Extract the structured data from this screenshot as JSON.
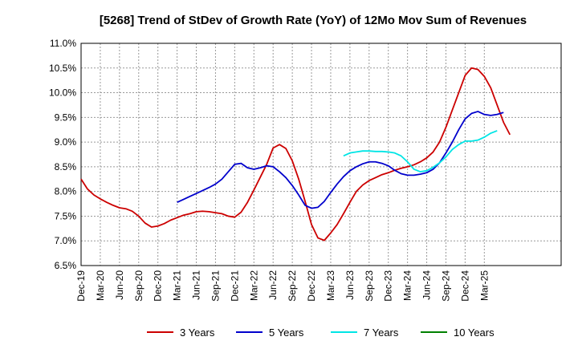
{
  "chart_data": {
    "type": "line",
    "title": "[5268]  Trend of StDev of Growth Rate (YoY) of 12Mo Mov Sum of Revenues",
    "xlabel": "",
    "ylabel": "",
    "ylim": [
      6.5,
      11.0
    ],
    "yticks": [
      "11.0%",
      "10.5%",
      "10.0%",
      "9.5%",
      "9.0%",
      "8.5%",
      "8.0%",
      "7.5%",
      "7.0%",
      "6.5%"
    ],
    "ytick_values": [
      11.0,
      10.5,
      10.0,
      9.5,
      9.0,
      8.5,
      8.0,
      7.5,
      7.0,
      6.5
    ],
    "xlim": [
      0,
      75
    ],
    "xticks": [
      "Dec-19",
      "Mar-20",
      "Jun-20",
      "Sep-20",
      "Dec-20",
      "Mar-21",
      "Jun-21",
      "Sep-21",
      "Dec-21",
      "Mar-22",
      "Jun-22",
      "Sep-22",
      "Dec-22",
      "Mar-23",
      "Jun-23",
      "Sep-23",
      "Dec-23",
      "Mar-24",
      "Jun-24",
      "Sep-24",
      "Dec-24",
      "Mar-25"
    ],
    "x_note": "x values are months since Dec-19",
    "series": [
      {
        "name": "3 Years",
        "color": "#cc0000",
        "x": [
          0,
          1,
          2,
          3,
          4,
          5,
          6,
          7,
          8,
          9,
          10,
          11,
          12,
          13,
          14,
          15,
          16,
          17,
          18,
          19,
          20,
          21,
          22,
          23,
          24,
          25,
          26,
          27,
          28,
          29,
          30,
          31,
          32,
          33,
          34,
          35,
          36,
          37,
          38,
          39,
          40,
          41,
          42,
          43,
          44,
          45,
          46,
          47,
          48,
          49,
          50,
          51,
          52,
          53,
          54,
          55,
          56,
          57,
          58,
          59,
          60,
          61,
          62,
          63,
          64,
          65,
          66,
          67,
          68,
          69,
          70,
          71,
          72,
          73,
          74,
          75
        ],
        "values": [
          8.25,
          8.05,
          7.93,
          7.85,
          7.78,
          7.72,
          7.67,
          7.65,
          7.6,
          7.5,
          7.36,
          7.28,
          7.3,
          7.35,
          7.42,
          7.47,
          7.52,
          7.55,
          7.59,
          7.6,
          7.59,
          7.57,
          7.55,
          7.5,
          7.48,
          7.58,
          7.78,
          8.03,
          8.29,
          8.55,
          8.88,
          8.95,
          8.87,
          8.62,
          8.25,
          7.8,
          7.33,
          7.06,
          7.01,
          7.16,
          7.33,
          7.55,
          7.78,
          8.0,
          8.13,
          8.22,
          8.28,
          8.34,
          8.38,
          8.43,
          8.47,
          8.5,
          8.54,
          8.6,
          8.68,
          8.8,
          9.0,
          9.3,
          9.65,
          10.0,
          10.35,
          10.5,
          10.47,
          10.33,
          10.1,
          9.75,
          9.4,
          9.15,
          null,
          null,
          null,
          null,
          null,
          null,
          null,
          null
        ]
      },
      {
        "name": "5 Years",
        "color": "#0000cc",
        "x": [
          0,
          1,
          2,
          3,
          4,
          5,
          6,
          7,
          8,
          9,
          10,
          11,
          12,
          13,
          14,
          15,
          16,
          17,
          18,
          19,
          20,
          21,
          22,
          23,
          24,
          25,
          26,
          27,
          28,
          29,
          30,
          31,
          32,
          33,
          34,
          35,
          36,
          37,
          38,
          39,
          40,
          41,
          42,
          43,
          44,
          45,
          46,
          47,
          48,
          49,
          50,
          51,
          52,
          53,
          54,
          55,
          56,
          57,
          58,
          59,
          60,
          61,
          62,
          63,
          64,
          65,
          66,
          67,
          68,
          69,
          70,
          71,
          72,
          73,
          74,
          75
        ],
        "values": [
          null,
          null,
          null,
          null,
          null,
          null,
          null,
          null,
          null,
          null,
          null,
          null,
          null,
          null,
          null,
          7.78,
          7.84,
          7.9,
          7.96,
          8.02,
          8.08,
          8.15,
          8.25,
          8.4,
          8.55,
          8.57,
          8.48,
          8.45,
          8.48,
          8.52,
          8.5,
          8.4,
          8.28,
          8.12,
          7.93,
          7.72,
          7.66,
          7.68,
          7.8,
          7.98,
          8.15,
          8.3,
          8.42,
          8.5,
          8.56,
          8.6,
          8.6,
          8.57,
          8.52,
          8.43,
          8.36,
          8.33,
          8.33,
          8.35,
          8.38,
          8.45,
          8.58,
          8.78,
          9.0,
          9.25,
          9.47,
          9.58,
          9.62,
          9.56,
          9.54,
          9.56,
          9.6,
          null,
          null,
          null,
          null,
          null,
          null,
          null,
          null,
          null
        ]
      },
      {
        "name": "7 Years",
        "color": "#00e5e5",
        "x": [
          0,
          1,
          2,
          3,
          4,
          5,
          6,
          7,
          8,
          9,
          10,
          11,
          12,
          13,
          14,
          15,
          16,
          17,
          18,
          19,
          20,
          21,
          22,
          23,
          24,
          25,
          26,
          27,
          28,
          29,
          30,
          31,
          32,
          33,
          34,
          35,
          36,
          37,
          38,
          39,
          40,
          41,
          42,
          43,
          44,
          45,
          46,
          47,
          48,
          49,
          50,
          51,
          52,
          53,
          54,
          55,
          56,
          57,
          58,
          59,
          60,
          61,
          62,
          63,
          64,
          65,
          66,
          67,
          68,
          69,
          70,
          71,
          72,
          73,
          74,
          75
        ],
        "values": [
          null,
          null,
          null,
          null,
          null,
          null,
          null,
          null,
          null,
          null,
          null,
          null,
          null,
          null,
          null,
          null,
          null,
          null,
          null,
          null,
          null,
          null,
          null,
          null,
          null,
          null,
          null,
          null,
          null,
          null,
          null,
          null,
          null,
          null,
          null,
          null,
          null,
          null,
          null,
          null,
          null,
          8.72,
          8.78,
          8.8,
          8.82,
          8.82,
          8.81,
          8.81,
          8.8,
          8.78,
          8.72,
          8.6,
          8.45,
          8.4,
          8.42,
          8.49,
          8.58,
          8.7,
          8.85,
          8.95,
          9.02,
          9.02,
          9.04,
          9.1,
          9.18,
          9.23,
          null,
          null,
          null,
          null,
          null,
          null,
          null,
          null,
          null,
          null
        ]
      },
      {
        "name": "10 Years",
        "color": "#008000",
        "x": [],
        "values": []
      }
    ],
    "legend": {
      "position": "bottom",
      "entries": [
        "3 Years",
        "5 Years",
        "7 Years",
        "10 Years"
      ]
    },
    "grid": true
  }
}
